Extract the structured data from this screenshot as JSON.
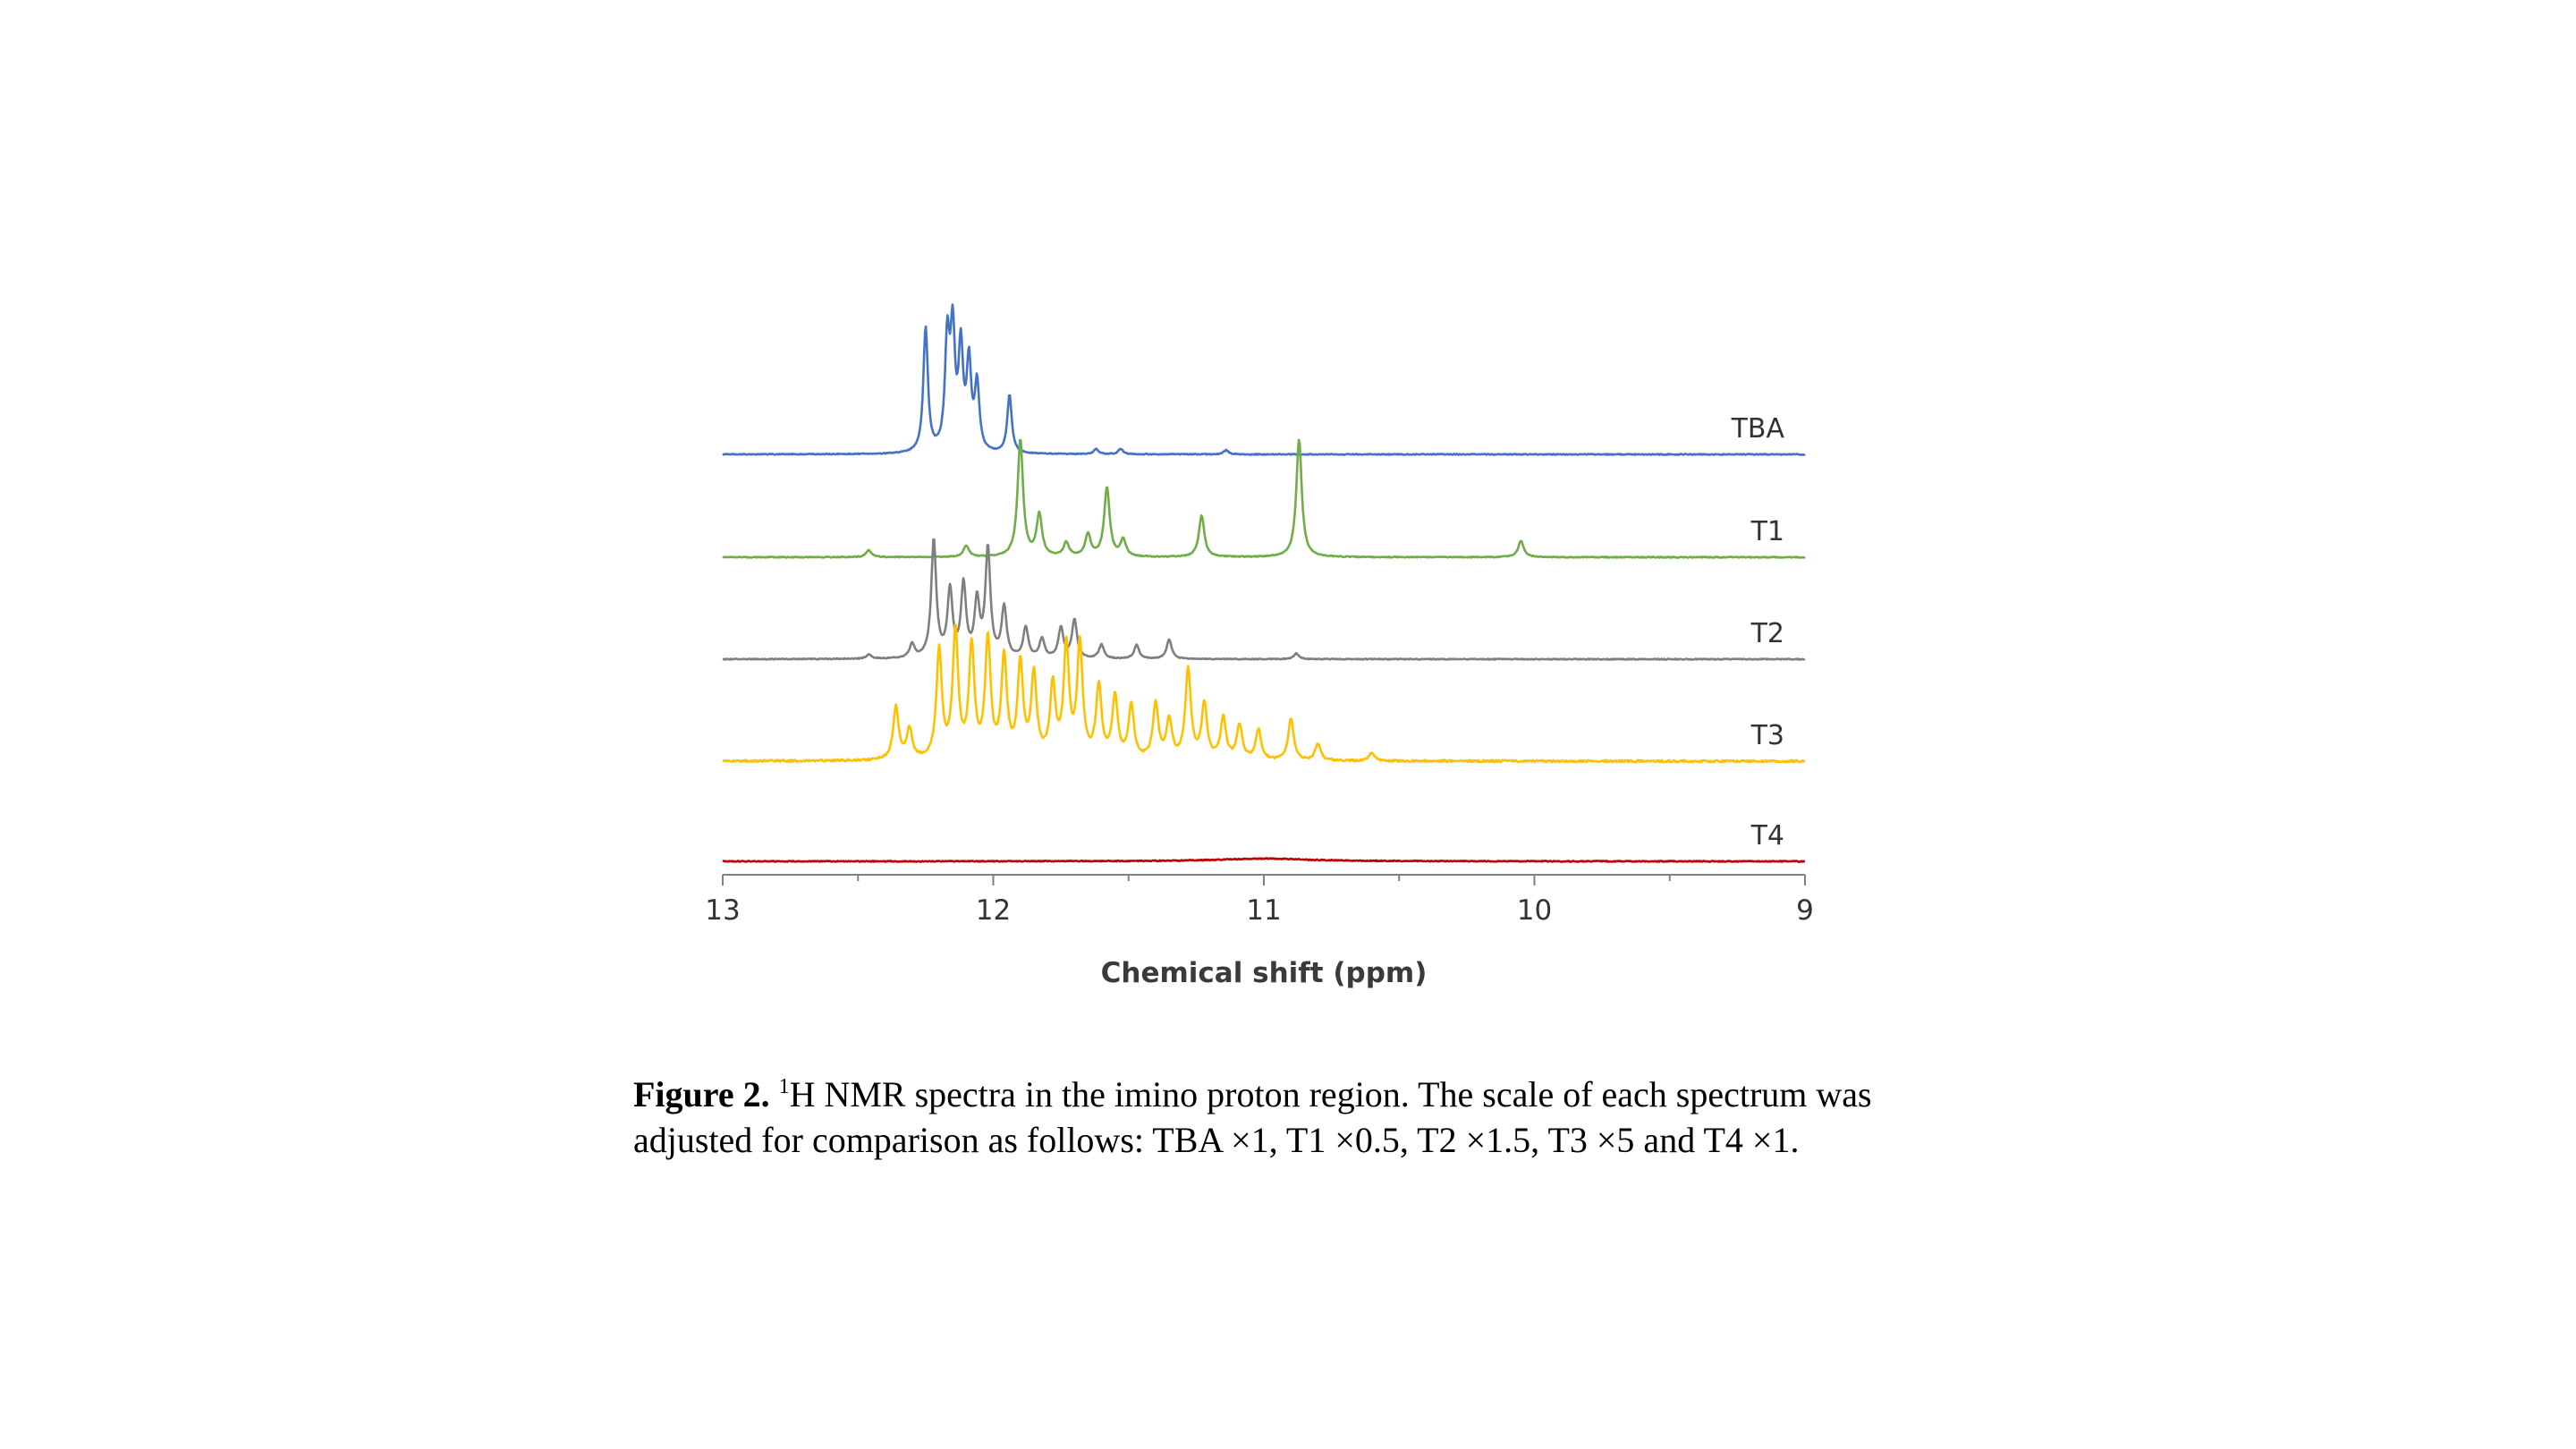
{
  "chart_data": {
    "type": "line",
    "xlabel": "Chemical shift (ppm)",
    "xlim": [
      13,
      9
    ],
    "x_reversed": true,
    "x_ticks": [
      "13",
      "12",
      "11",
      "10",
      "9"
    ],
    "y_axis_shown": false,
    "grid": false,
    "legend": "series labels at right end of each trace",
    "series": [
      {
        "name": "TBA",
        "color": "#4472c4",
        "peaks": [
          [
            12.25,
            90
          ],
          [
            12.17,
            78
          ],
          [
            12.15,
            82
          ],
          [
            12.12,
            72
          ],
          [
            12.09,
            62
          ],
          [
            12.06,
            48
          ],
          [
            11.94,
            42
          ],
          [
            11.62,
            4
          ],
          [
            11.53,
            4
          ],
          [
            11.14,
            3
          ]
        ]
      },
      {
        "name": "T1",
        "color": "#70ad47",
        "peaks": [
          [
            12.46,
            5
          ],
          [
            12.1,
            8
          ],
          [
            11.9,
            85
          ],
          [
            11.83,
            30
          ],
          [
            11.73,
            10
          ],
          [
            11.65,
            16
          ],
          [
            11.58,
            50
          ],
          [
            11.52,
            12
          ],
          [
            11.23,
            30
          ],
          [
            10.87,
            85
          ],
          [
            10.05,
            12
          ]
        ]
      },
      {
        "name": "T2",
        "color": "#7f7f7f",
        "peaks": [
          [
            12.46,
            3
          ],
          [
            12.3,
            10
          ],
          [
            12.22,
            85
          ],
          [
            12.16,
            48
          ],
          [
            12.11,
            52
          ],
          [
            12.06,
            40
          ],
          [
            12.02,
            78
          ],
          [
            11.96,
            36
          ],
          [
            11.88,
            22
          ],
          [
            11.82,
            14
          ],
          [
            11.75,
            22
          ],
          [
            11.7,
            28
          ],
          [
            11.6,
            10
          ],
          [
            11.47,
            10
          ],
          [
            11.35,
            14
          ],
          [
            10.88,
            4
          ]
        ]
      },
      {
        "name": "T3",
        "color": "#ffc000",
        "peaks": [
          [
            12.36,
            38
          ],
          [
            12.31,
            22
          ],
          [
            12.2,
            78
          ],
          [
            12.14,
            92
          ],
          [
            12.08,
            80
          ],
          [
            12.02,
            85
          ],
          [
            11.96,
            72
          ],
          [
            11.9,
            68
          ],
          [
            11.85,
            60
          ],
          [
            11.78,
            52
          ],
          [
            11.73,
            80
          ],
          [
            11.68,
            82
          ],
          [
            11.61,
            52
          ],
          [
            11.55,
            45
          ],
          [
            11.49,
            38
          ],
          [
            11.4,
            40
          ],
          [
            11.35,
            28
          ],
          [
            11.28,
            65
          ],
          [
            11.22,
            40
          ],
          [
            11.15,
            30
          ],
          [
            11.09,
            25
          ],
          [
            11.02,
            22
          ],
          [
            10.9,
            30
          ],
          [
            10.8,
            12
          ],
          [
            10.6,
            6
          ]
        ]
      },
      {
        "name": "T4",
        "color": "#c00000",
        "peaks": [
          [
            11.0,
            2
          ]
        ]
      }
    ]
  },
  "caption": {
    "figure_label": "Figure 2.",
    "superscript": "1",
    "text": "H NMR spectra in the imino proton region. The scale of each spectrum was adjusted for comparison as follows: TBA ×1, T1 ×0.5, T2 ×1.5, T3 ×5 and T4 ×1."
  }
}
